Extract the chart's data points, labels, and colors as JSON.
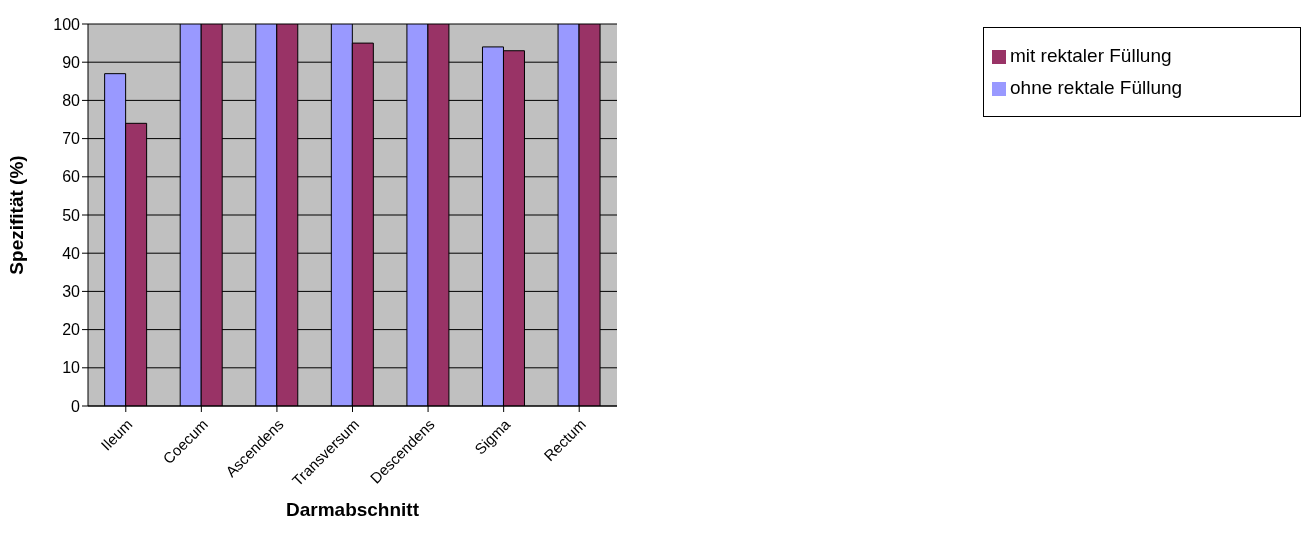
{
  "chart_data": {
    "type": "bar",
    "xlabel": "Darmabschnitt",
    "ylabel": "Spezifität (%)",
    "categories": [
      "Ileum",
      "Coecum",
      "Ascendens",
      "Transversum",
      "Descendens",
      "Sigma",
      "Rectum"
    ],
    "series": [
      {
        "name": "ohne rektale Füllung",
        "color": "#9999ff",
        "values": [
          87,
          100,
          100,
          100,
          100,
          94,
          100
        ]
      },
      {
        "name": "mit rektaler Füllung",
        "color": "#993366",
        "values": [
          74,
          100,
          100,
          95,
          100,
          93,
          100
        ]
      }
    ],
    "ylim": [
      0,
      100
    ],
    "yticks": [
      0,
      10,
      20,
      30,
      40,
      50,
      60,
      70,
      80,
      90,
      100
    ],
    "grid": "y",
    "legend": "top right"
  }
}
